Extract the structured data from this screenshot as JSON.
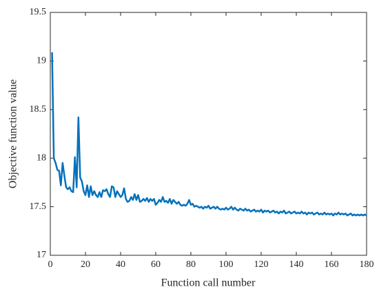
{
  "chart_data": {
    "type": "line",
    "x_label": "Function call number",
    "y_label": "Objective function value",
    "x": [
      1,
      2,
      3,
      4,
      5,
      6,
      7,
      8,
      9,
      10,
      11,
      12,
      13,
      14,
      15,
      16,
      17,
      18,
      19,
      20,
      21,
      22,
      23,
      24,
      25,
      26,
      27,
      28,
      29,
      30,
      31,
      32,
      33,
      34,
      35,
      36,
      37,
      38,
      39,
      40,
      41,
      42,
      43,
      44,
      45,
      46,
      47,
      48,
      49,
      50,
      51,
      52,
      53,
      54,
      55,
      56,
      57,
      58,
      59,
      60,
      61,
      62,
      63,
      64,
      65,
      66,
      67,
      68,
      69,
      70,
      71,
      72,
      73,
      74,
      75,
      76,
      77,
      78,
      79,
      80,
      81,
      82,
      83,
      84,
      85,
      86,
      87,
      88,
      89,
      90,
      91,
      92,
      93,
      94,
      95,
      96,
      97,
      98,
      99,
      100,
      101,
      102,
      103,
      104,
      105,
      106,
      107,
      108,
      109,
      110,
      111,
      112,
      113,
      114,
      115,
      116,
      117,
      118,
      119,
      120,
      121,
      122,
      123,
      124,
      125,
      126,
      127,
      128,
      129,
      130,
      131,
      132,
      133,
      134,
      135,
      136,
      137,
      138,
      139,
      140,
      141,
      142,
      143,
      144,
      145,
      146,
      147,
      148,
      149,
      150,
      151,
      152,
      153,
      154,
      155,
      156,
      157,
      158,
      159,
      160,
      161,
      162,
      163,
      164,
      165,
      166,
      167,
      168,
      169,
      170,
      171,
      172,
      173,
      174,
      175,
      176,
      177,
      178,
      179,
      180
    ],
    "series": [
      {
        "color": "#0072bd",
        "values": [
          19.09,
          18.0,
          17.95,
          17.88,
          17.87,
          17.72,
          17.95,
          17.82,
          17.7,
          17.68,
          17.7,
          17.66,
          17.65,
          18.01,
          17.7,
          18.42,
          17.8,
          17.76,
          17.66,
          17.62,
          17.72,
          17.6,
          17.71,
          17.62,
          17.66,
          17.62,
          17.6,
          17.65,
          17.6,
          17.67,
          17.66,
          17.68,
          17.63,
          17.6,
          17.71,
          17.7,
          17.6,
          17.66,
          17.63,
          17.6,
          17.62,
          17.69,
          17.58,
          17.55,
          17.56,
          17.6,
          17.57,
          17.63,
          17.57,
          17.62,
          17.55,
          17.56,
          17.58,
          17.56,
          17.59,
          17.55,
          17.58,
          17.56,
          17.58,
          17.52,
          17.54,
          17.57,
          17.55,
          17.6,
          17.55,
          17.56,
          17.54,
          17.58,
          17.53,
          17.57,
          17.55,
          17.53,
          17.55,
          17.52,
          17.51,
          17.52,
          17.51,
          17.53,
          17.57,
          17.52,
          17.53,
          17.5,
          17.51,
          17.5,
          17.49,
          17.5,
          17.48,
          17.5,
          17.49,
          17.51,
          17.48,
          17.49,
          17.5,
          17.48,
          17.5,
          17.48,
          17.47,
          17.48,
          17.47,
          17.49,
          17.47,
          17.48,
          17.5,
          17.47,
          17.49,
          17.47,
          17.46,
          17.48,
          17.47,
          17.46,
          17.48,
          17.46,
          17.47,
          17.45,
          17.46,
          17.47,
          17.45,
          17.46,
          17.45,
          17.47,
          17.44,
          17.46,
          17.45,
          17.46,
          17.44,
          17.45,
          17.46,
          17.44,
          17.45,
          17.43,
          17.45,
          17.44,
          17.46,
          17.43,
          17.44,
          17.45,
          17.43,
          17.44,
          17.45,
          17.43,
          17.44,
          17.43,
          17.45,
          17.43,
          17.44,
          17.42,
          17.44,
          17.43,
          17.44,
          17.42,
          17.43,
          17.44,
          17.42,
          17.43,
          17.42,
          17.44,
          17.42,
          17.43,
          17.42,
          17.43,
          17.41,
          17.43,
          17.42,
          17.44,
          17.42,
          17.43,
          17.42,
          17.43,
          17.41,
          17.42,
          17.43,
          17.41,
          17.42,
          17.41,
          17.42,
          17.41,
          17.42,
          17.41,
          17.42,
          17.41
        ]
      }
    ],
    "xlim": [
      0,
      180
    ],
    "xticks": [
      0,
      20,
      40,
      60,
      80,
      100,
      120,
      140,
      160,
      180
    ],
    "ylim": [
      17,
      19.5
    ],
    "yticks": [
      17,
      17.5,
      18,
      18.5,
      19,
      19.5
    ]
  }
}
